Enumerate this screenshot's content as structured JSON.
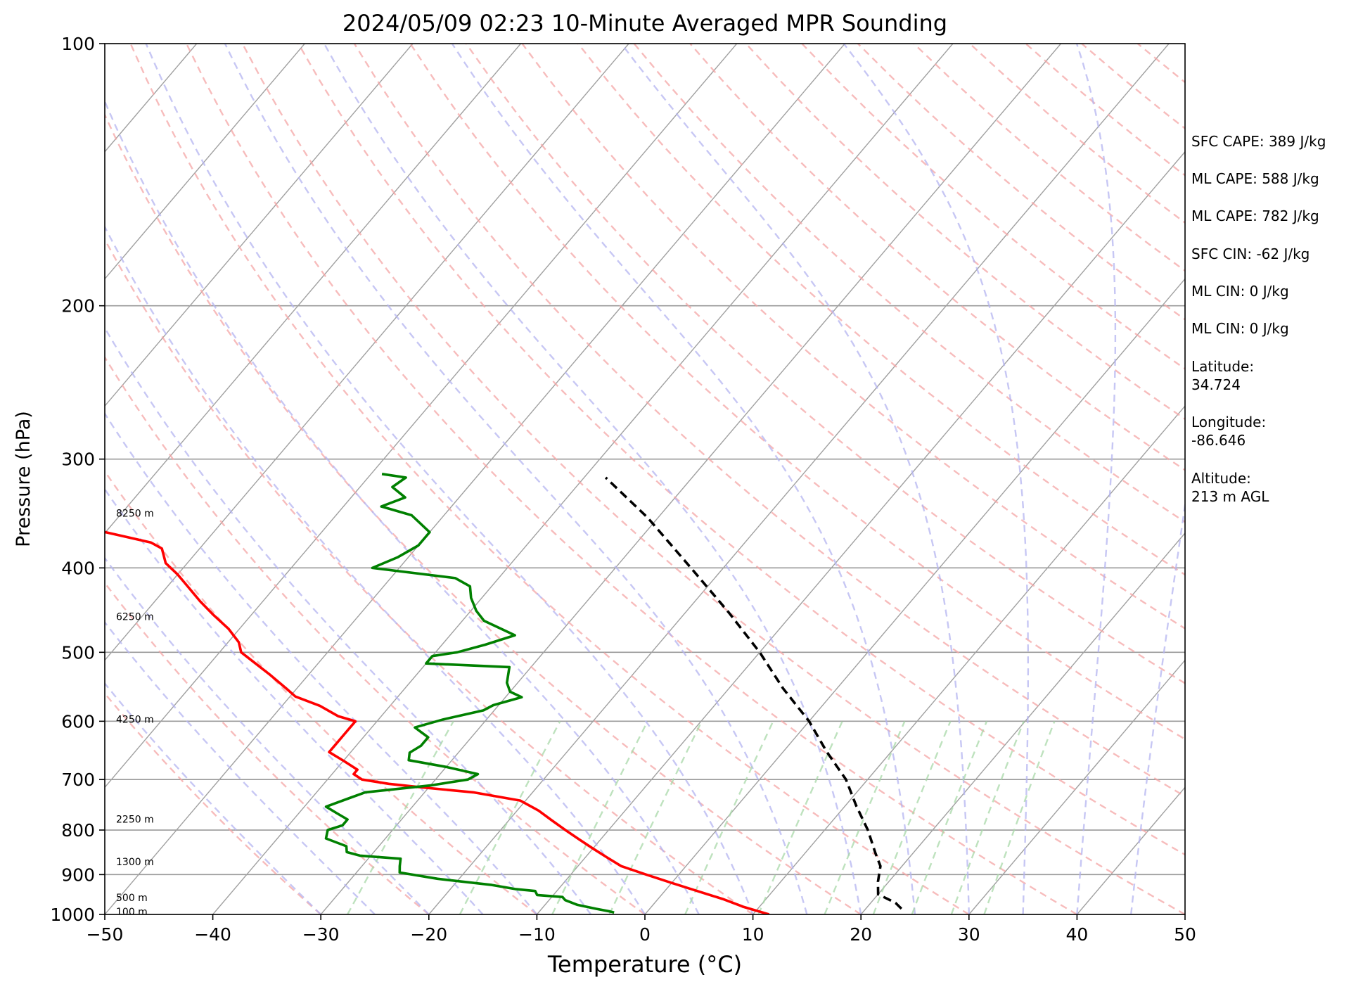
{
  "chart_data": {
    "type": "line",
    "title": "2024/05/09 02:23 10-Minute Averaged MPR Sounding",
    "xlabel": "Temperature (°C)",
    "ylabel": "Pressure (hPa)",
    "xlim": [
      -50,
      50
    ],
    "ylim": [
      1000,
      100
    ],
    "y_scale": "log",
    "skew": "skew-T log-p",
    "x_ticks": [
      "−50",
      "−40",
      "−30",
      "−20",
      "−10",
      "0",
      "10",
      "20",
      "30",
      "40",
      "50"
    ],
    "x_tick_values": [
      -50,
      -40,
      -30,
      -20,
      -10,
      0,
      10,
      20,
      30,
      40,
      50
    ],
    "y_ticks": [
      "100",
      "200",
      "300",
      "400",
      "500",
      "600",
      "700",
      "800",
      "900",
      "1000"
    ],
    "y_tick_values": [
      100,
      200,
      300,
      400,
      500,
      600,
      700,
      800,
      900,
      1000
    ],
    "grid": true,
    "height_labels": [
      {
        "text": "8250 m",
        "p": 346
      },
      {
        "text": "6250 m",
        "p": 455
      },
      {
        "text": "4250 m",
        "p": 597
      },
      {
        "text": "2250 m",
        "p": 777
      },
      {
        "text": "1300 m",
        "p": 870
      },
      {
        "text": "500 m",
        "p": 956
      },
      {
        "text": "100 m",
        "p": 993
      }
    ],
    "series": [
      {
        "role": "temperature",
        "color": "#ff0000",
        "points": [
          [
            1000,
            11.5
          ],
          [
            980,
            8.5
          ],
          [
            960,
            6.0
          ],
          [
            940,
            3.0
          ],
          [
            920,
            0.0
          ],
          [
            900,
            -3.0
          ],
          [
            880,
            -6.0
          ],
          [
            860,
            -8.0
          ],
          [
            840,
            -10.0
          ],
          [
            820,
            -12.0
          ],
          [
            800,
            -14.0
          ],
          [
            780,
            -16.0
          ],
          [
            760,
            -18.0
          ],
          [
            740,
            -20.5
          ],
          [
            724,
            -25.5
          ],
          [
            715,
            -30.5
          ],
          [
            708,
            -34.0
          ],
          [
            700,
            -36.8
          ],
          [
            690,
            -38.0
          ],
          [
            682,
            -38.0
          ],
          [
            666,
            -40.0
          ],
          [
            651,
            -42.0
          ],
          [
            640,
            -42.0
          ],
          [
            620,
            -42.0
          ],
          [
            600,
            -42.0
          ],
          [
            592,
            -44.0
          ],
          [
            576,
            -46.5
          ],
          [
            562,
            -49.5
          ],
          [
            550,
            -51.0
          ],
          [
            531,
            -53.5
          ],
          [
            517,
            -55.5
          ],
          [
            500,
            -58.0
          ],
          [
            487,
            -59.0
          ],
          [
            470,
            -61.0
          ],
          [
            453,
            -63.5
          ],
          [
            437,
            -65.8
          ],
          [
            421,
            -68.0
          ],
          [
            407,
            -70.0
          ],
          [
            395,
            -72.0
          ],
          [
            380,
            -73.5
          ],
          [
            374,
            -75.0
          ],
          [
            364,
            -80.0
          ],
          [
            355,
            -84.0
          ],
          [
            350,
            -86.5
          ]
        ]
      },
      {
        "role": "dewpoint",
        "color": "#008000",
        "points": [
          [
            995,
            -3.0
          ],
          [
            992,
            -3.5
          ],
          [
            985,
            -5.0
          ],
          [
            975,
            -7.0
          ],
          [
            963,
            -8.5
          ],
          [
            955,
            -9.0
          ],
          [
            950,
            -11.5
          ],
          [
            940,
            -12.0
          ],
          [
            935,
            -14.0
          ],
          [
            925,
            -16.5
          ],
          [
            910,
            -22.0
          ],
          [
            895,
            -26.0
          ],
          [
            880,
            -26.5
          ],
          [
            863,
            -27.0
          ],
          [
            856,
            -31.0
          ],
          [
            848,
            -32.5
          ],
          [
            835,
            -33.0
          ],
          [
            818,
            -35.5
          ],
          [
            800,
            -36.0
          ],
          [
            790,
            -35.0
          ],
          [
            778,
            -35.0
          ],
          [
            765,
            -36.5
          ],
          [
            752,
            -38.0
          ],
          [
            735,
            -36.5
          ],
          [
            724,
            -35.5
          ],
          [
            711,
            -30.0
          ],
          [
            700,
            -27.0
          ],
          [
            690,
            -26.5
          ],
          [
            677,
            -30.0
          ],
          [
            665,
            -34.0
          ],
          [
            652,
            -34.5
          ],
          [
            640,
            -34.0
          ],
          [
            626,
            -34.0
          ],
          [
            610,
            -36.0
          ],
          [
            597,
            -34.0
          ],
          [
            583,
            -31.0
          ],
          [
            575,
            -30.5
          ],
          [
            563,
            -28.5
          ],
          [
            555,
            -30.0
          ],
          [
            542,
            -31.0
          ],
          [
            520,
            -32.0
          ],
          [
            515,
            -40.0
          ],
          [
            505,
            -40.0
          ],
          [
            500,
            -38.0
          ],
          [
            490,
            -36.0
          ],
          [
            478,
            -34.0
          ],
          [
            460,
            -38.0
          ],
          [
            448,
            -39.5
          ],
          [
            433,
            -41.0
          ],
          [
            420,
            -42.0
          ],
          [
            411,
            -44.0
          ],
          [
            400,
            -52.5
          ],
          [
            389,
            -51.0
          ],
          [
            377,
            -50.0
          ],
          [
            364,
            -50.0
          ],
          [
            348,
            -53.0
          ],
          [
            340,
            -56.5
          ],
          [
            332,
            -55.0
          ],
          [
            323,
            -57.0
          ],
          [
            315,
            -56.5
          ],
          [
            312,
            -59.0
          ]
        ]
      },
      {
        "role": "parcel",
        "color": "#000000",
        "dashed": true,
        "points": [
          [
            985,
            23.3
          ],
          [
            970,
            22.3
          ],
          [
            948,
            20.0
          ],
          [
            917,
            19.0
          ],
          [
            880,
            18.0
          ],
          [
            850,
            16.5
          ],
          [
            800,
            14.0
          ],
          [
            750,
            11.0
          ],
          [
            700,
            8.0
          ],
          [
            650,
            4.0
          ],
          [
            600,
            0.0
          ],
          [
            550,
            -5.0
          ],
          [
            500,
            -10.0
          ],
          [
            450,
            -16.0
          ],
          [
            400,
            -23.0
          ],
          [
            350,
            -31.0
          ],
          [
            315,
            -38.0
          ]
        ]
      }
    ]
  },
  "stats": {
    "sfc_cape": "SFC CAPE: 389 J/kg",
    "ml_cape_1": "ML CAPE: 588 J/kg",
    "ml_cape_2": "ML CAPE: 782 J/kg",
    "sfc_cin": "SFC CIN: -62 J/kg",
    "ml_cin_1": "ML CIN: 0 J/kg",
    "ml_cin_2": "ML CIN: 0 J/kg",
    "latitude": "Latitude:\n34.724",
    "longitude": "Longitude:\n-86.646",
    "altitude": "Altitude:\n213 m AGL"
  }
}
